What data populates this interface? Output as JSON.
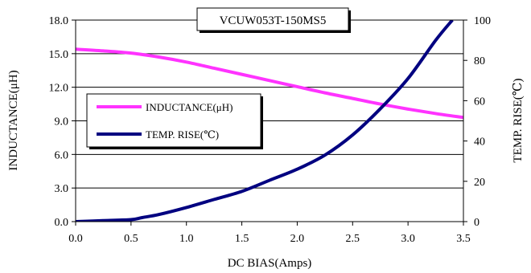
{
  "chart_data": {
    "type": "line",
    "title": "VCUW053T-150MS5",
    "xlabel": "DC BIAS(Amps)",
    "ylabel_left": "INDUCTANCE(μH)",
    "ylabel_right": "TEMP. RISE(℃)",
    "xlim": [
      0,
      3.5
    ],
    "ylim_left": [
      0,
      18
    ],
    "ylim_right": [
      0,
      100
    ],
    "x_ticks": [
      "0.0",
      "0.5",
      "1.0",
      "1.5",
      "2.0",
      "2.5",
      "3.0",
      "3.5"
    ],
    "y_ticks_left": [
      "0.0",
      "3.0",
      "6.0",
      "9.0",
      "12.0",
      "15.0",
      "18.0"
    ],
    "y_ticks_right": [
      "0",
      "20",
      "40",
      "60",
      "80",
      "100"
    ],
    "grid": "horizontal",
    "legend_position": "left",
    "series": [
      {
        "name": "INDUCTANCE(μH)",
        "axis": "left",
        "color": "#ff33ff",
        "x": [
          0,
          0.25,
          0.5,
          0.75,
          1.0,
          1.25,
          1.5,
          1.75,
          2.0,
          2.25,
          2.5,
          2.75,
          3.0,
          3.25,
          3.5
        ],
        "y": [
          15.4,
          15.25,
          15.05,
          14.7,
          14.25,
          13.7,
          13.15,
          12.6,
          12.05,
          11.5,
          11.0,
          10.5,
          10.05,
          9.65,
          9.3
        ]
      },
      {
        "name": "TEMP. RISE(℃)",
        "axis": "right",
        "color": "#000080",
        "x": [
          0,
          0.25,
          0.5,
          0.6,
          0.75,
          1.0,
          1.25,
          1.5,
          1.75,
          2.0,
          2.25,
          2.5,
          2.75,
          3.0,
          3.25,
          3.4
        ],
        "y": [
          0,
          0.5,
          1.0,
          2,
          3.5,
          7,
          11,
          15,
          20.5,
          26,
          33,
          43,
          56,
          71,
          90,
          100
        ]
      }
    ]
  }
}
